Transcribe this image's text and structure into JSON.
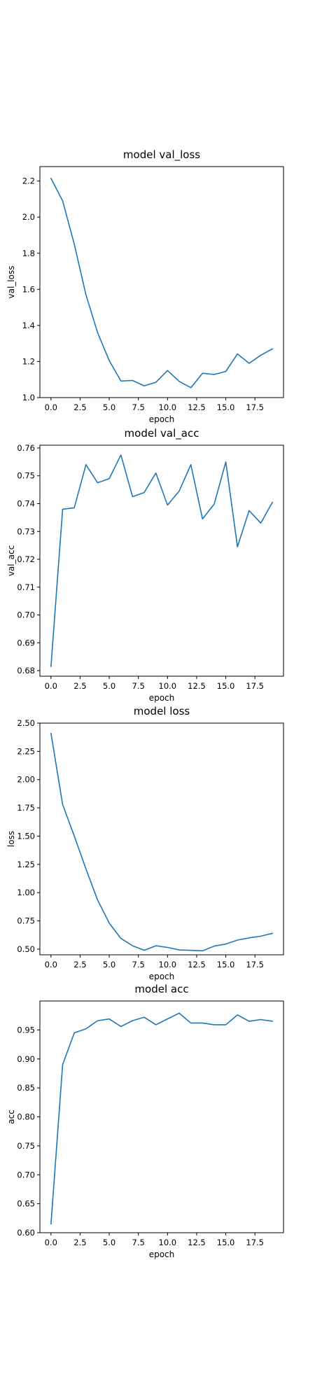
{
  "colors": {
    "series": "#1f77b4",
    "axes": "#000000",
    "background": "#ffffff"
  },
  "chart_data": [
    {
      "type": "line",
      "title": "model val_loss",
      "xlabel": "epoch",
      "ylabel": "val_loss",
      "xlim": [
        -0.95,
        19.95
      ],
      "ylim": [
        1.0,
        2.28
      ],
      "xticks": [
        0.0,
        2.5,
        5.0,
        7.5,
        10.0,
        12.5,
        15.0,
        17.5
      ],
      "xtick_labels": [
        "0.0",
        "2.5",
        "5.0",
        "7.5",
        "10.0",
        "12.5",
        "15.0",
        "17.5"
      ],
      "yticks": [
        1.0,
        1.2,
        1.4,
        1.6,
        1.8,
        2.0,
        2.2
      ],
      "ytick_labels": [
        "1.0",
        "1.2",
        "1.4",
        "1.6",
        "1.8",
        "2.0",
        "2.2"
      ],
      "grid": false,
      "x": [
        0,
        1,
        2,
        3,
        4,
        5,
        6,
        7,
        8,
        9,
        10,
        11,
        12,
        13,
        14,
        15,
        16,
        17,
        18,
        19
      ],
      "series": [
        {
          "values": [
            2.215,
            2.09,
            1.85,
            1.57,
            1.36,
            1.205,
            1.092,
            1.095,
            1.065,
            1.085,
            1.15,
            1.09,
            1.055,
            1.135,
            1.128,
            1.145,
            1.242,
            1.19,
            1.235,
            1.27
          ]
        }
      ]
    },
    {
      "type": "line",
      "title": "model val_acc",
      "xlabel": "epoch",
      "ylabel": "val_acc",
      "xlim": [
        -0.95,
        19.95
      ],
      "ylim": [
        0.678,
        0.761
      ],
      "xticks": [
        0.0,
        2.5,
        5.0,
        7.5,
        10.0,
        12.5,
        15.0,
        17.5
      ],
      "xtick_labels": [
        "0.0",
        "2.5",
        "5.0",
        "7.5",
        "10.0",
        "12.5",
        "15.0",
        "17.5"
      ],
      "yticks": [
        0.68,
        0.69,
        0.7,
        0.71,
        0.72,
        0.73,
        0.74,
        0.75,
        0.76
      ],
      "ytick_labels": [
        "0.68",
        "0.69",
        "0.70",
        "0.71",
        "0.72",
        "0.73",
        "0.74",
        "0.75",
        "0.76"
      ],
      "grid": false,
      "x": [
        0,
        1,
        2,
        3,
        4,
        5,
        6,
        7,
        8,
        9,
        10,
        11,
        12,
        13,
        14,
        15,
        16,
        17,
        18,
        19
      ],
      "series": [
        {
          "values": [
            0.6815,
            0.738,
            0.7385,
            0.754,
            0.7475,
            0.749,
            0.7575,
            0.7425,
            0.744,
            0.751,
            0.7395,
            0.7445,
            0.754,
            0.7345,
            0.7398,
            0.755,
            0.7245,
            0.7375,
            0.733,
            0.7405
          ]
        }
      ]
    },
    {
      "type": "line",
      "title": "model loss",
      "xlabel": "epoch",
      "ylabel": "loss",
      "xlim": [
        -0.95,
        19.95
      ],
      "ylim": [
        0.45,
        2.5
      ],
      "xticks": [
        0.0,
        2.5,
        5.0,
        7.5,
        10.0,
        12.5,
        15.0,
        17.5
      ],
      "xtick_labels": [
        "0.0",
        "2.5",
        "5.0",
        "7.5",
        "10.0",
        "12.5",
        "15.0",
        "17.5"
      ],
      "yticks": [
        0.5,
        0.75,
        1.0,
        1.25,
        1.5,
        1.75,
        2.0,
        2.25,
        2.5
      ],
      "ytick_labels": [
        "0.50",
        "0.75",
        "1.00",
        "1.25",
        "1.50",
        "1.75",
        "2.00",
        "2.25",
        "2.50"
      ],
      "grid": false,
      "x": [
        0,
        1,
        2,
        3,
        4,
        5,
        6,
        7,
        8,
        9,
        10,
        11,
        12,
        13,
        14,
        15,
        16,
        17,
        18,
        19
      ],
      "series": [
        {
          "values": [
            2.41,
            1.78,
            1.5,
            1.21,
            0.935,
            0.73,
            0.595,
            0.53,
            0.49,
            0.53,
            0.515,
            0.493,
            0.49,
            0.485,
            0.527,
            0.545,
            0.58,
            0.6,
            0.615,
            0.64
          ]
        }
      ]
    },
    {
      "type": "line",
      "title": "model acc",
      "xlabel": "epoch",
      "ylabel": "acc",
      "xlim": [
        -0.95,
        19.95
      ],
      "ylim": [
        0.6,
        1.0
      ],
      "xticks": [
        0.0,
        2.5,
        5.0,
        7.5,
        10.0,
        12.5,
        15.0,
        17.5
      ],
      "xtick_labels": [
        "0.0",
        "2.5",
        "5.0",
        "7.5",
        "10.0",
        "12.5",
        "15.0",
        "17.5"
      ],
      "yticks": [
        0.6,
        0.65,
        0.7,
        0.75,
        0.8,
        0.85,
        0.9,
        0.95
      ],
      "ytick_labels": [
        "0.60",
        "0.65",
        "0.70",
        "0.75",
        "0.80",
        "0.85",
        "0.90",
        "0.95"
      ],
      "grid": false,
      "x": [
        0,
        1,
        2,
        3,
        4,
        5,
        6,
        7,
        8,
        9,
        10,
        11,
        12,
        13,
        14,
        15,
        16,
        17,
        18,
        19
      ],
      "series": [
        {
          "values": [
            0.615,
            0.89,
            0.945,
            0.952,
            0.966,
            0.969,
            0.956,
            0.966,
            0.972,
            0.959,
            0.969,
            0.979,
            0.962,
            0.962,
            0.959,
            0.959,
            0.976,
            0.965,
            0.968,
            0.965
          ]
        }
      ]
    }
  ]
}
